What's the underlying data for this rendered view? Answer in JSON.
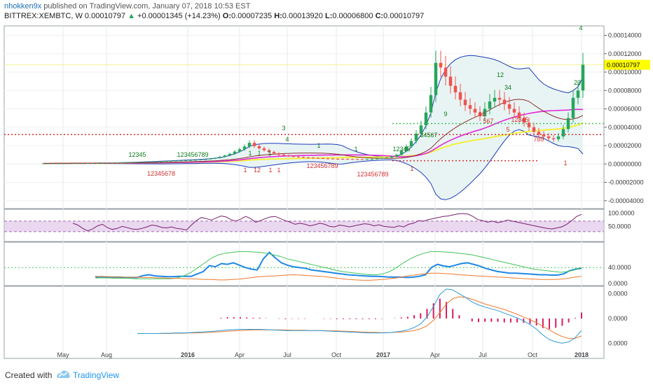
{
  "header": {
    "author": "nhokken9x",
    "published_text": "published on TradingView.com, January 07, 2018 10:53 EST",
    "symbol": "BITTREX:XEMBTC, W",
    "last": "0.00010797",
    "change": "+0.00001345 (+14.23%)",
    "open_label": "O:",
    "open": "0.00007235",
    "high_label": "H:",
    "high": "0.00013920",
    "low_label": "L:",
    "low": "0.00006800",
    "close_label": "C:",
    "close": "0.00010797"
  },
  "footer": {
    "created_with": "Created with",
    "brand": "TradingView"
  },
  "colors": {
    "up": "#26a65b",
    "down": "#ef5350",
    "bb": "#1a3cb8",
    "bb_fill": "#e8f4f4",
    "rsi": "#7b1f6e",
    "rsi_band": "#ead8f0",
    "adx": "#1e88e5",
    "diplus": "#41c45a",
    "diminus": "#f07a2c",
    "macd": "#2a9bd8",
    "signal": "#f07a2c",
    "hist": "#d81b60",
    "tdbuy": "#0c7a1a",
    "tdsell": "#d32f2f",
    "sma_pink": "#e22ad6",
    "sma_yellow": "#f4ef3a",
    "sma_maroon": "#8e2b2b"
  },
  "chart_data": [
    {
      "type": "candlestick",
      "title": "BITTREX:XEMBTC, W",
      "x_labels": [
        "May",
        "Aug",
        "2016",
        "Apr",
        "Jul",
        "Oct",
        "2017",
        "Apr",
        "Jul",
        "Oct",
        "2018"
      ],
      "price_axis": [
        "0.00014000",
        "0.00012000",
        "0.00010000",
        "0.00008000",
        "0.00006000",
        "0.00004000",
        "0.00002000",
        "0.00000000",
        "-0.00002000",
        "-0.00004000"
      ],
      "price_axis_values": [
        0.00014,
        0.00012,
        0.0001,
        8e-05,
        6e-05,
        4e-05,
        2e-05,
        0,
        -2e-05,
        -4e-05
      ],
      "last_price_label": "0.00010797",
      "ylim": [
        -4.4e-05,
        0.000148
      ],
      "closes": [
        6e-07,
        6e-07,
        7e-07,
        7e-07,
        7e-07,
        7e-07,
        8e-07,
        8e-07,
        8e-07,
        9e-07,
        9e-07,
        1e-06,
        1.1e-06,
        1.2e-06,
        1.3e-06,
        1.4e-06,
        1.6e-06,
        1.8e-06,
        1.9e-06,
        2.1e-06,
        2.3e-06,
        2.4e-06,
        2.6e-06,
        2.8e-06,
        3e-06,
        3.2e-06,
        3.4e-06,
        3.6e-06,
        3.8e-06,
        4e-06,
        4.2e-06,
        4.5e-06,
        4.8e-06,
        5.2e-06,
        5.8e-06,
        6.6e-06,
        7.8e-06,
        9.2e-06,
        1.1e-05,
        1.35e-05,
        1.6e-05,
        1.9e-05,
        2.3e-05,
        1.95e-05,
        1.7e-05,
        1.5e-05,
        1.3e-05,
        1.15e-05,
        1e-05,
        9e-06,
        8.5e-06,
        8e-06,
        7.5e-06,
        7e-06,
        6.8e-06,
        6.5e-06,
        6.3e-06,
        6e-06,
        5.8e-06,
        5.6e-06,
        5.5e-06,
        5.4e-06,
        5.3e-06,
        5.2e-06,
        5.1e-06,
        5e-06,
        5.2e-06,
        5.5e-06,
        6e-06,
        6.5e-06,
        7e-06,
        8e-06,
        1e-05,
        1.4e-05,
        1.9e-05,
        2.5e-05,
        3.3e-05,
        4.2e-05,
        5.6e-05,
        7.5e-05,
        0.00011,
        0.000105,
        9.5e-05,
        8.5e-05,
        7.8e-05,
        7e-05,
        6.4e-05,
        6e-05,
        5.6e-05,
        5.2e-05,
        6e-05,
        6.8e-05,
        7.2e-05,
        7e-05,
        6.5e-05,
        6e-05,
        5.6e-05,
        5e-05,
        4.5e-05,
        4e-05,
        3.5e-05,
        3.2e-05,
        3e-05,
        2.8e-05,
        2.7e-05,
        3e-05,
        3.8e-05,
        5e-05,
        7.2e-05,
        8e-05,
        0.000108
      ]
    },
    {
      "type": "line",
      "name": "RSI",
      "y_axis": [
        "100.0000",
        "50.0000"
      ],
      "ylim": [
        0,
        110
      ],
      "values": [
        62,
        55,
        42,
        33,
        40,
        52,
        58,
        45,
        38,
        42,
        50,
        45,
        40,
        38,
        42,
        48,
        55,
        52,
        46,
        44,
        48,
        42,
        40,
        36,
        55,
        72,
        84,
        80,
        74,
        82,
        90,
        86,
        76,
        70,
        78,
        88,
        80,
        66,
        72,
        80,
        86,
        88,
        80,
        72,
        66,
        58,
        62,
        58,
        52,
        56,
        62,
        58,
        50,
        48,
        55,
        52,
        48,
        52,
        56,
        60,
        58,
        52,
        56,
        50,
        48,
        46,
        52,
        48,
        58,
        62,
        72,
        70,
        76,
        80,
        84,
        88,
        90,
        94,
        98,
        99,
        97,
        88,
        76,
        72,
        66,
        70,
        64,
        68,
        74,
        70,
        66,
        62,
        58,
        54,
        50,
        46,
        42,
        40,
        44,
        48,
        58,
        72,
        88,
        96
      ]
    },
    {
      "type": "line",
      "name": "ADX/DMI",
      "y_axis": [
        "40.0000",
        "0.0000"
      ],
      "ylim": [
        0,
        100
      ],
      "series": [
        {
          "name": "ADX",
          "values": [
            16,
            17,
            16,
            16,
            16,
            15,
            15,
            15,
            20,
            22,
            19,
            18,
            17,
            17,
            18,
            18,
            18,
            24,
            30,
            45,
            42,
            50,
            48,
            52,
            46,
            40,
            36,
            34,
            62,
            78,
            64,
            52,
            46,
            42,
            40,
            38,
            34,
            32,
            30,
            28,
            26,
            24,
            22,
            21,
            20,
            19,
            18,
            18,
            17,
            16,
            16,
            16,
            15,
            16,
            18,
            22,
            40,
            48,
            44,
            42,
            46,
            50,
            52,
            48,
            44,
            38,
            34,
            30,
            28,
            26,
            26,
            25,
            24,
            23,
            22,
            22,
            21,
            21,
            24,
            32,
            36,
            38
          ]
        },
        {
          "name": "+DI",
          "values": [
            14,
            14,
            14,
            13,
            13,
            13,
            12,
            12,
            12,
            12,
            12,
            12,
            14,
            20,
            28,
            40,
            52,
            64,
            72,
            76,
            78,
            80,
            80,
            79,
            78,
            76,
            72,
            68,
            62,
            58,
            54,
            50,
            46,
            42,
            38,
            34,
            30,
            28,
            26,
            24,
            22,
            22,
            24,
            30,
            40,
            52,
            62,
            70,
            76,
            80,
            80,
            79,
            78,
            76,
            74,
            72,
            68,
            64,
            60,
            56,
            52,
            48,
            44,
            40,
            36,
            34,
            32,
            30,
            28,
            30,
            34,
            40
          ]
        },
        {
          "name": "-DI",
          "values": [
            18,
            17,
            17,
            16,
            16,
            15,
            16,
            15,
            15,
            14,
            14,
            13,
            13,
            12,
            12,
            11,
            10,
            10,
            9,
            9,
            10,
            11,
            13,
            15,
            17,
            18,
            19,
            20,
            21,
            22,
            21,
            20,
            19,
            18,
            16,
            14,
            12,
            10,
            9,
            8,
            8,
            9,
            10,
            12,
            14,
            17,
            20,
            22,
            24,
            26,
            26,
            25,
            24,
            22,
            21,
            20,
            19,
            18,
            17,
            16,
            15,
            14,
            13,
            12,
            11,
            10,
            10,
            10,
            11,
            13,
            16,
            18
          ]
        }
      ]
    },
    {
      "type": "line",
      "name": "MACD",
      "y_axis": [
        "0.0000",
        "0.0000",
        "0.0000"
      ],
      "ylim": [
        -1,
        1
      ],
      "series": [
        {
          "name": "MACD",
          "values": [
            -0.5,
            -0.5,
            -0.5,
            -0.5,
            -0.49,
            -0.49,
            -0.48,
            -0.48,
            -0.47,
            -0.46,
            -0.45,
            -0.44,
            -0.42,
            -0.4,
            -0.38,
            -0.37,
            -0.36,
            -0.36,
            -0.36,
            -0.36,
            -0.37,
            -0.38,
            -0.39,
            -0.4,
            -0.4,
            -0.4,
            -0.4,
            -0.4,
            -0.4,
            -0.41,
            -0.42,
            -0.43,
            -0.44,
            -0.45,
            -0.46,
            -0.47,
            -0.48,
            -0.48,
            -0.48,
            -0.47,
            -0.45,
            -0.42,
            -0.38,
            -0.3,
            -0.18,
            0.05,
            0.4,
            0.8,
            0.98,
            0.95,
            0.82,
            0.7,
            0.55,
            0.45,
            0.38,
            0.32,
            0.26,
            0.18,
            0.1,
            0.02,
            -0.08,
            -0.2,
            -0.35,
            -0.55,
            -0.7,
            -0.78,
            -0.82,
            -0.78,
            -0.64,
            -0.4
          ]
        },
        {
          "name": "Signal",
          "values": [
            -0.5,
            -0.5,
            -0.5,
            -0.5,
            -0.5,
            -0.5,
            -0.49,
            -0.49,
            -0.48,
            -0.48,
            -0.47,
            -0.46,
            -0.45,
            -0.44,
            -0.42,
            -0.41,
            -0.4,
            -0.39,
            -0.38,
            -0.38,
            -0.38,
            -0.38,
            -0.38,
            -0.38,
            -0.39,
            -0.39,
            -0.39,
            -0.4,
            -0.4,
            -0.4,
            -0.41,
            -0.41,
            -0.42,
            -0.43,
            -0.44,
            -0.45,
            -0.46,
            -0.46,
            -0.47,
            -0.47,
            -0.46,
            -0.45,
            -0.43,
            -0.4,
            -0.34,
            -0.24,
            -0.06,
            0.2,
            0.48,
            0.66,
            0.72,
            0.7,
            0.64,
            0.56,
            0.48,
            0.42,
            0.36,
            0.3,
            0.22,
            0.14,
            0.05,
            -0.04,
            -0.14,
            -0.26,
            -0.38,
            -0.5,
            -0.6,
            -0.66,
            -0.66,
            -0.58
          ]
        },
        {
          "name": "Histogram",
          "values": [
            0,
            0,
            0,
            0,
            0,
            0,
            0,
            0,
            0,
            0,
            0,
            0,
            0,
            0.02,
            0.04,
            0.04,
            0.04,
            0.03,
            0.02,
            0.02,
            0.01,
            0,
            -0.01,
            -0.02,
            -0.01,
            -0.01,
            -0.01,
            0,
            0,
            -0.01,
            -0.01,
            -0.02,
            -0.02,
            -0.02,
            -0.02,
            -0.02,
            -0.02,
            -0.02,
            -0.01,
            0,
            0.01,
            0.03,
            0.05,
            0.1,
            0.16,
            0.29,
            0.46,
            0.6,
            0.5,
            0.29,
            0.1,
            0,
            -0.09,
            -0.11,
            -0.1,
            -0.1,
            -0.1,
            -0.12,
            -0.12,
            -0.12,
            -0.13,
            -0.16,
            -0.21,
            -0.29,
            -0.32,
            -0.28,
            -0.22,
            -0.12,
            0.02,
            0.18
          ]
        }
      ]
    }
  ]
}
